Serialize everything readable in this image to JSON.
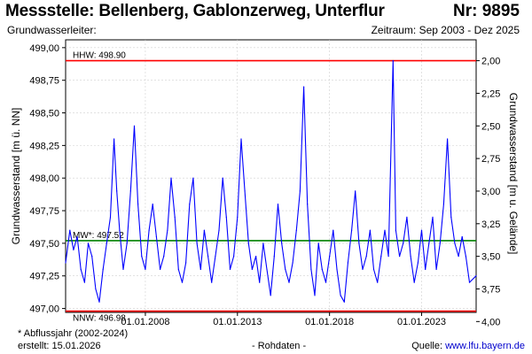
{
  "header": {
    "title": "Messstelle: Bellenberg, Gablonzerweg, Unterflur",
    "nr": "Nr: 9895",
    "aquifer": "Grundwasserleiter:",
    "period": "Zeitraum: Sep 2003 - Dez 2025"
  },
  "footer": {
    "note": "* Abflussjahr (2002-2024)",
    "created": "erstellt:  15.01.2026",
    "raw": "- Rohdaten -",
    "source_label": "Quelle: ",
    "source_url": "www.lfu.bayern.de"
  },
  "colors": {
    "series": "#0000ff",
    "threshold_high": "#ff0000",
    "threshold_low": "#ff0000",
    "mean": "#008000",
    "grid": "#d0d0d0"
  },
  "chart_data": {
    "type": "line",
    "ylabel": "Grundwasserstand [m ü. NN]",
    "ylabel_right": "Grundwasserstand [m u. Gelände]",
    "ylim": [
      496.97,
      499.06
    ],
    "yticks": [
      497.0,
      497.25,
      497.5,
      497.75,
      498.0,
      498.25,
      498.5,
      498.75,
      499.0
    ],
    "ytick_labels": [
      "497,00",
      "497,25",
      "497,50",
      "497,75",
      "498,00",
      "498,25",
      "498,50",
      "498,75",
      "499,00"
    ],
    "yticks_right": [
      2.0,
      2.25,
      2.5,
      2.75,
      3.0,
      3.25,
      3.5,
      3.75,
      4.0
    ],
    "ytick_labels_right": [
      "2,00",
      "2,25",
      "2,50",
      "2,75",
      "3,00",
      "3,25",
      "3,50",
      "3,75",
      "4,00"
    ],
    "right_axis_reference": 500.9,
    "xlim": [
      2003.67,
      2025.96
    ],
    "xticks": [
      2008.0,
      2013.0,
      2018.0,
      2023.0
    ],
    "xtick_labels": [
      "01.01.2008",
      "01.01.2013",
      "01.01.2018",
      "01.01.2023"
    ],
    "grid": true,
    "thresholds": [
      {
        "label": "HHW: 498.90",
        "value": 498.9,
        "kind": "high"
      },
      {
        "label": "MW*: 497.52",
        "value": 497.52,
        "kind": "mean"
      },
      {
        "label": "NNW: 496.98",
        "value": 496.98,
        "kind": "low"
      }
    ],
    "series": [
      {
        "x": [
          2003.67,
          2003.9,
          2004.1,
          2004.3,
          2004.5,
          2004.7,
          2004.9,
          2005.1,
          2005.3,
          2005.5,
          2005.7,
          2005.9,
          2006.1,
          2006.3,
          2006.45,
          2006.6,
          2006.8,
          2007.0,
          2007.2,
          2007.4,
          2007.6,
          2007.8,
          2008.0,
          2008.2,
          2008.4,
          2008.6,
          2008.8,
          2009.0,
          2009.2,
          2009.4,
          2009.6,
          2009.8,
          2010.0,
          2010.2,
          2010.4,
          2010.6,
          2010.8,
          2011.0,
          2011.2,
          2011.4,
          2011.6,
          2011.8,
          2012.0,
          2012.2,
          2012.4,
          2012.6,
          2012.8,
          2013.0,
          2013.2,
          2013.4,
          2013.6,
          2013.8,
          2014.0,
          2014.2,
          2014.4,
          2014.6,
          2014.8,
          2015.0,
          2015.2,
          2015.4,
          2015.6,
          2015.8,
          2016.0,
          2016.2,
          2016.4,
          2016.6,
          2016.8,
          2017.0,
          2017.2,
          2017.4,
          2017.6,
          2017.8,
          2018.0,
          2018.2,
          2018.4,
          2018.6,
          2018.8,
          2019.0,
          2019.2,
          2019.4,
          2019.6,
          2019.8,
          2020.0,
          2020.2,
          2020.4,
          2020.6,
          2020.8,
          2021.0,
          2021.2,
          2021.45,
          2021.6,
          2021.8,
          2022.0,
          2022.2,
          2022.4,
          2022.6,
          2022.8,
          2023.0,
          2023.2,
          2023.4,
          2023.6,
          2023.8,
          2024.0,
          2024.2,
          2024.4,
          2024.6,
          2024.8,
          2025.0,
          2025.2,
          2025.4,
          2025.6,
          2025.96
        ],
        "y": [
          497.35,
          497.6,
          497.45,
          497.55,
          497.3,
          497.2,
          497.5,
          497.4,
          497.15,
          497.05,
          497.3,
          497.5,
          497.7,
          498.3,
          497.9,
          497.6,
          497.3,
          497.5,
          497.9,
          498.4,
          497.8,
          497.4,
          497.3,
          497.6,
          497.8,
          497.55,
          497.3,
          497.4,
          497.6,
          498.0,
          497.7,
          497.3,
          497.2,
          497.35,
          497.8,
          498.0,
          497.5,
          497.3,
          497.6,
          497.4,
          497.2,
          497.4,
          497.6,
          498.0,
          497.7,
          497.3,
          497.4,
          497.7,
          498.3,
          497.9,
          497.5,
          497.3,
          497.4,
          497.2,
          497.5,
          497.3,
          497.1,
          497.4,
          497.8,
          497.5,
          497.3,
          497.2,
          497.35,
          497.6,
          497.9,
          498.7,
          497.8,
          497.3,
          497.1,
          497.5,
          497.3,
          497.2,
          497.4,
          497.6,
          497.3,
          497.1,
          497.05,
          497.35,
          497.6,
          497.9,
          497.5,
          497.3,
          497.4,
          497.6,
          497.3,
          497.2,
          497.4,
          497.6,
          497.4,
          498.9,
          497.6,
          497.4,
          497.5,
          497.7,
          497.4,
          497.2,
          497.35,
          497.6,
          497.3,
          497.5,
          497.7,
          497.3,
          497.5,
          497.8,
          498.3,
          497.7,
          497.5,
          497.4,
          497.55,
          497.4,
          497.2,
          497.25
        ]
      }
    ]
  }
}
